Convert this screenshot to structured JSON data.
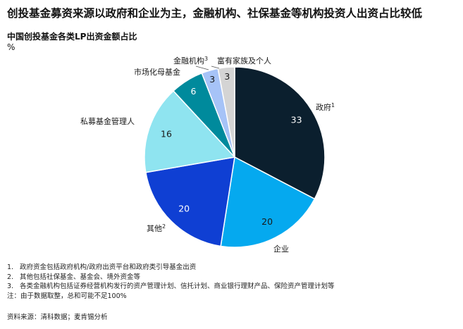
{
  "headline": "创投基金募资来源以政府和企业为主，金融机构、社保基金等机构投资人出资占比较低",
  "chart_data": {
    "type": "pie",
    "title": "中国创投基金各类LP出资金额占比",
    "unit": "%",
    "slices": [
      {
        "label": "政府",
        "sup": "1",
        "value": 33,
        "color": "#0b1f2e",
        "value_color": "#ffffff"
      },
      {
        "label": "企业",
        "sup": "",
        "value": 20,
        "color": "#05a9ef",
        "value_color": "#1a1a1a"
      },
      {
        "label": "其他",
        "sup": "2",
        "value": 20,
        "color": "#0f3fd3",
        "value_color": "#ffffff"
      },
      {
        "label": "私募基金管理人",
        "sup": "",
        "value": 16,
        "color": "#8fe4f0",
        "value_color": "#1a1a1a"
      },
      {
        "label": "市场化母基金",
        "sup": "",
        "value": 6,
        "color": "#008a9c",
        "value_color": "#ffffff"
      },
      {
        "label": "金融机构",
        "sup": "3",
        "value": 3,
        "color": "#a6c3f7",
        "value_color": "#1a1a1a"
      },
      {
        "label": "富有家族及个人",
        "sup": "",
        "value": 3,
        "color": "#d4d4d4",
        "value_color": "#1a1a1a"
      }
    ]
  },
  "notes": [
    {
      "num": "1.",
      "text": "政府资金包括政府机构/政府出资平台和政府类引导基金出资"
    },
    {
      "num": "2.",
      "text": "其他包括社保基金、基金会、境外资金等"
    },
    {
      "num": "3.",
      "text": "各类金融机构包括证券经营机构发行的资产管理计划、信托计划、商业银行理财产品、保险资产管理计划等"
    }
  ],
  "note_plain": "注：由于数据取整，总和可能不足100%",
  "source": "资料来源：清科数据；麦肯锡分析"
}
